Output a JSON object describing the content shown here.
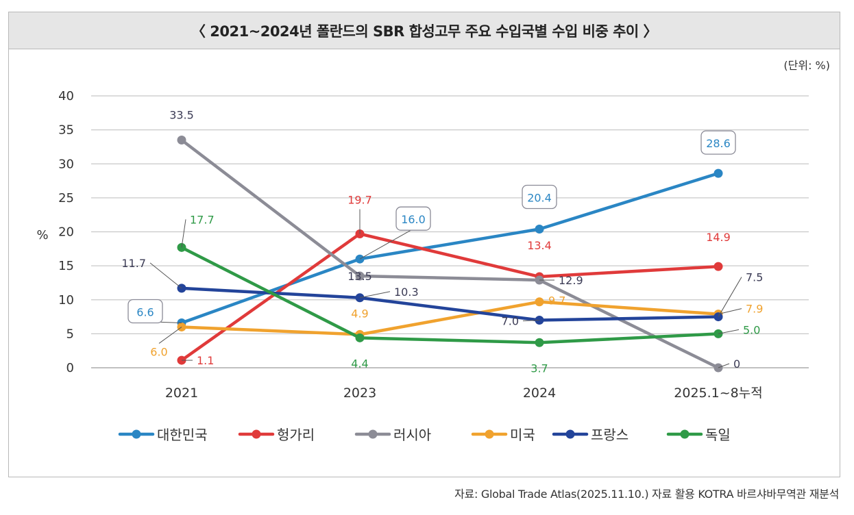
{
  "chart_data": {
    "type": "line",
    "title": "〈 2021~2024년 폴란드의 SBR 합성고무 주요 수입국별 수입 비중 추이 〉",
    "unit_note": "(단위: %)",
    "ylabel": "%",
    "xlabel": "",
    "ylim": [
      0,
      40
    ],
    "yticks": [
      "0",
      "5",
      "10",
      "15",
      "20",
      "25",
      "30",
      "35",
      "40"
    ],
    "categories": [
      "2021",
      "2023",
      "2024",
      "2025.1~8누적"
    ],
    "legend_position": "bottom",
    "grid": true,
    "series": [
      {
        "name": "대한민국",
        "color": "#2a86c4",
        "values": [
          6.6,
          16.0,
          20.4,
          28.6
        ],
        "labels": [
          "6.6",
          "16.0",
          "20.4",
          "28.6"
        ]
      },
      {
        "name": "헝가리",
        "color": "#e03a3a",
        "values": [
          1.1,
          19.7,
          13.4,
          14.9
        ],
        "labels": [
          "1.1",
          "19.7",
          "13.4",
          "14.9"
        ]
      },
      {
        "name": "러시아",
        "color": "#8c8c96",
        "values": [
          33.5,
          13.5,
          12.9,
          0
        ],
        "labels": [
          "33.5",
          "13.5",
          "12.9",
          "0"
        ]
      },
      {
        "name": "미국",
        "color": "#f0a22e",
        "values": [
          6.0,
          4.9,
          9.7,
          7.9
        ],
        "labels": [
          "6.0",
          "4.9",
          "9.7",
          "7.9"
        ]
      },
      {
        "name": "프랑스",
        "color": "#23449a",
        "values": [
          11.7,
          10.3,
          7.0,
          7.5
        ],
        "labels": [
          "11.7",
          "10.3",
          "7.0",
          "7.5"
        ]
      },
      {
        "name": "독일",
        "color": "#2f9a47",
        "values": [
          17.7,
          4.4,
          3.7,
          5.0
        ],
        "labels": [
          "17.7",
          "4.4",
          "3.7",
          "5.0"
        ]
      }
    ]
  },
  "source": "자료: Global Trade Atlas(2025.11.10.) 자료 활용 KOTRA 바르샤바무역관 재분석"
}
